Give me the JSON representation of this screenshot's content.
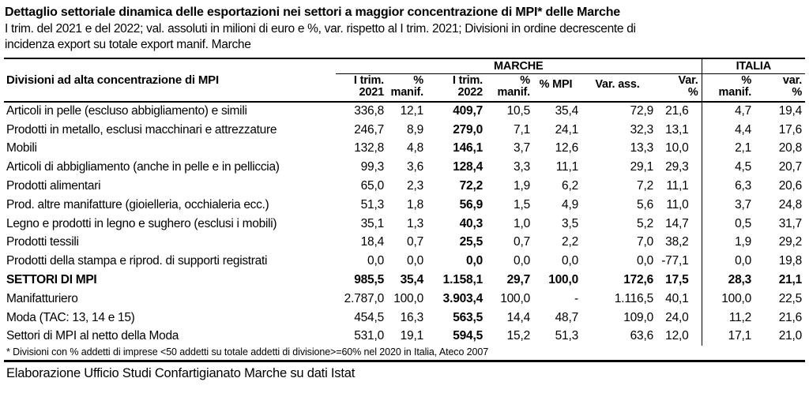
{
  "title": "Dettaglio settoriale dinamica delle esportazioni nei settori a maggior concentrazione di MPI* delle Marche",
  "subtitle": "I trim. del 2021 e del 2022; val. assoluti in milioni di euro e %, var. rispetto al I trim. 2021; Divisioni in ordine decrescente di\nincidenza export su totale export manif. Marche",
  "colors": {
    "text": "#000000",
    "background": "#ffffff",
    "border": "#000000"
  },
  "table": {
    "label_header": "Divisioni ad alta concentrazione di MPI",
    "groups": {
      "marche": "MARCHE",
      "italia": "ITALIA"
    },
    "columns": [
      "I trim.\n2021",
      "%\nmanif.",
      "I trim.\n2022",
      "%\nmanif.",
      "% MPI",
      "Var. ass.",
      "Var.\n%",
      "%\nmanif.",
      "var.\n%"
    ],
    "rows": [
      {
        "label": "Articoli in pelle (escluso abbigliamento) e simili",
        "bold": false,
        "values": [
          "336,8",
          "12,1",
          "409,7",
          "10,5",
          "35,4",
          "72,9",
          "21,6",
          "4,7",
          "19,4"
        ]
      },
      {
        "label": "Prodotti in metallo, esclusi macchinari e attrezzature",
        "bold": false,
        "values": [
          "246,7",
          "8,9",
          "279,0",
          "7,1",
          "24,1",
          "32,3",
          "13,1",
          "4,4",
          "17,6"
        ]
      },
      {
        "label": "Mobili",
        "bold": false,
        "values": [
          "132,8",
          "4,8",
          "146,1",
          "3,7",
          "12,6",
          "13,3",
          "10,0",
          "2,1",
          "20,8"
        ]
      },
      {
        "label": "Articoli di abbigliamento (anche in pelle e in pelliccia)",
        "bold": false,
        "values": [
          "99,3",
          "3,6",
          "128,4",
          "3,3",
          "11,1",
          "29,1",
          "29,3",
          "4,5",
          "20,7"
        ]
      },
      {
        "label": "Prodotti alimentari",
        "bold": false,
        "values": [
          "65,0",
          "2,3",
          "72,2",
          "1,9",
          "6,2",
          "7,2",
          "11,1",
          "6,3",
          "20,6"
        ]
      },
      {
        "label": "Prod. altre manifatture (gioielleria, occhialeria ecc.)",
        "bold": false,
        "values": [
          "51,3",
          "1,8",
          "56,9",
          "1,5",
          "4,9",
          "5,6",
          "11,0",
          "3,7",
          "24,8"
        ]
      },
      {
        "label": "Legno e prodotti in legno e sughero (esclusi i mobili)",
        "bold": false,
        "values": [
          "35,1",
          "1,3",
          "40,3",
          "1,0",
          "3,5",
          "5,2",
          "14,7",
          "0,5",
          "31,7"
        ]
      },
      {
        "label": "Prodotti tessili",
        "bold": false,
        "values": [
          "18,4",
          "0,7",
          "25,5",
          "0,7",
          "2,2",
          "7,0",
          "38,2",
          "1,9",
          "29,2"
        ]
      },
      {
        "label": "Prodotti della stampa e riprod. di supporti registrati",
        "bold": false,
        "values": [
          "0,0",
          "0,0",
          "0,0",
          "0,0",
          "0,0",
          "0,0",
          "-77,1",
          "0,0",
          "19,8"
        ]
      },
      {
        "label": "SETTORI DI MPI",
        "bold": true,
        "values": [
          "985,5",
          "35,4",
          "1.158,1",
          "29,7",
          "100,0",
          "172,6",
          "17,5",
          "28,3",
          "21,1"
        ]
      },
      {
        "label": "Manifatturiero",
        "bold": false,
        "values": [
          "2.787,0",
          "100,0",
          "3.903,4",
          "100,0",
          "-",
          "1.116,5",
          "40,1",
          "100,0",
          "22,5"
        ]
      },
      {
        "label": "Moda (TAC: 13, 14 e 15)",
        "bold": false,
        "values": [
          "454,5",
          "16,3",
          "563,5",
          "14,4",
          "48,7",
          "109,0",
          "24,0",
          "11,2",
          "21,6"
        ]
      },
      {
        "label": "Settori di MPI al netto della Moda",
        "bold": false,
        "values": [
          "531,0",
          "19,1",
          "594,5",
          "15,2",
          "51,3",
          "63,6",
          "12,0",
          "17,1",
          "21,0"
        ]
      }
    ],
    "footnote": "* Divisioni con % addetti di imprese <50 addetti su totale addetti di divisione>=60% nel 2020 in Italia, Ateco 2007"
  },
  "source": "Elaborazione Ufficio Studi Confartigianato Marche su dati Istat"
}
